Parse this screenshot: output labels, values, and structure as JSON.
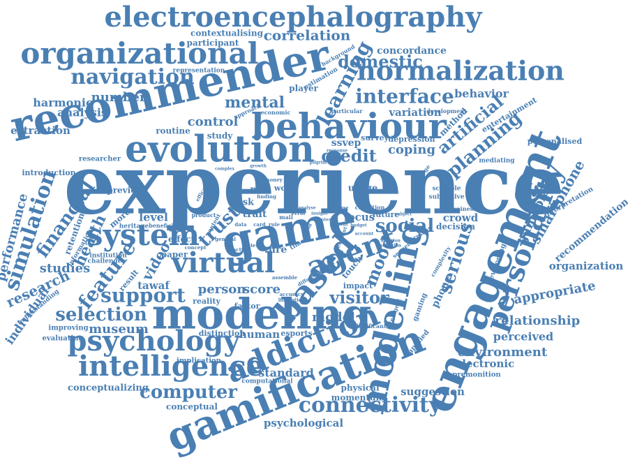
{
  "cloud": {
    "color": "#4a7fb3",
    "background": "#ffffff",
    "words": [
      {
        "text": "experience",
        "size": 5,
        "rot": 0
      },
      {
        "text": "recommender",
        "size": 4,
        "rot": -13
      },
      {
        "text": "electroencephalography",
        "size": 3,
        "rot": 0
      },
      {
        "text": "engagement",
        "size": 4,
        "rot": -68
      },
      {
        "text": "gamification",
        "size": 4,
        "rot": -22
      },
      {
        "text": "behaviour",
        "size": 4,
        "rot": 0
      },
      {
        "text": "evolution",
        "size": 4,
        "rot": 0
      },
      {
        "text": "game",
        "size": 4,
        "rot": -11
      },
      {
        "text": "modeling",
        "size": 4,
        "rot": 0
      },
      {
        "text": "organizational",
        "size": 3,
        "rot": 0
      },
      {
        "text": "normalization",
        "size": 3,
        "rot": 0
      },
      {
        "text": "modelling",
        "size": 3,
        "rot": -78
      },
      {
        "text": "addiction",
        "size": 3,
        "rot": -22
      },
      {
        "text": "psychology",
        "size": 3,
        "rot": 0
      },
      {
        "text": "intelligence",
        "size": 3,
        "rot": 0
      },
      {
        "text": "personality",
        "size": 3,
        "rot": -70
      },
      {
        "text": "agent",
        "size": 3,
        "rot": -20
      },
      {
        "text": "virtual",
        "size": 3,
        "rot": 0
      },
      {
        "text": "based",
        "size": 3,
        "rot": -50
      },
      {
        "text": "system",
        "size": 3,
        "rot": 0
      },
      {
        "text": "connectivity",
        "size": 2,
        "rot": 0
      },
      {
        "text": "navigation",
        "size": 2,
        "rot": 0
      },
      {
        "text": "interface",
        "size": 2,
        "rot": 0
      },
      {
        "text": "learning",
        "size": 2,
        "rot": -62
      },
      {
        "text": "domestic",
        "size": 2,
        "rot": 0
      },
      {
        "text": "social",
        "size": 2,
        "rot": 0
      },
      {
        "text": "support",
        "size": 2,
        "rot": 0
      },
      {
        "text": "feature",
        "size": 2,
        "rot": -52
      },
      {
        "text": "selection",
        "size": 2,
        "rot": 0
      },
      {
        "text": "computer",
        "size": 2,
        "rot": 0
      },
      {
        "text": "simulation",
        "size": 2,
        "rot": -72
      },
      {
        "text": "financial",
        "size": 2,
        "rot": -55
      },
      {
        "text": "planning",
        "size": 2,
        "rot": -40
      },
      {
        "text": "artificial",
        "size": 2,
        "rot": -40
      },
      {
        "text": "serious",
        "size": 2,
        "rot": -72
      },
      {
        "text": "mental",
        "size": 2,
        "rot": 0
      },
      {
        "text": "credit",
        "size": 2,
        "rot": 0
      },
      {
        "text": "trust",
        "size": 2,
        "rot": -45
      },
      {
        "text": "mood",
        "size": 2,
        "rot": -68
      },
      {
        "text": "visitor",
        "size": 2,
        "rot": 0
      },
      {
        "text": "correlation",
        "size": 1,
        "rot": 0
      },
      {
        "text": "control",
        "size": 1,
        "rot": 0
      },
      {
        "text": "coping",
        "size": 1,
        "rot": 0
      },
      {
        "text": "number",
        "size": 1,
        "rot": 0
      },
      {
        "text": "analysis",
        "size": 1,
        "rot": 0
      },
      {
        "text": "harmonic",
        "size": 1,
        "rot": 0
      },
      {
        "text": "extraction",
        "size": 1,
        "rot": 0
      },
      {
        "text": "behavior",
        "size": 1,
        "rot": 0
      },
      {
        "text": "variation",
        "size": 1,
        "rot": 0
      },
      {
        "text": "ssvep",
        "size": 1,
        "rot": 0
      },
      {
        "text": "gameplay",
        "size": 1,
        "rot": -65
      },
      {
        "text": "smartphone",
        "size": 1,
        "rot": -60
      },
      {
        "text": "health",
        "size": 1,
        "rot": -65
      },
      {
        "text": "research",
        "size": 1,
        "rot": -25
      },
      {
        "text": "studies",
        "size": 1,
        "rot": 0
      },
      {
        "text": "video",
        "size": 1,
        "rot": -60
      },
      {
        "text": "person",
        "size": 1,
        "rot": 0
      },
      {
        "text": "score",
        "size": 1,
        "rot": 0
      },
      {
        "text": "model",
        "size": 1,
        "rot": 0
      },
      {
        "text": "museum",
        "size": 1,
        "rot": 0
      },
      {
        "text": "human",
        "size": 1,
        "rot": 0
      },
      {
        "text": "standard",
        "size": 1,
        "rot": 0
      },
      {
        "text": "suggestion",
        "size": 1,
        "rot": 0
      },
      {
        "text": "environment",
        "size": 1,
        "rot": 0
      },
      {
        "text": "relationship",
        "size": 1,
        "rot": 0
      },
      {
        "text": "appropriate",
        "size": 1,
        "rot": -10
      },
      {
        "text": "perceived",
        "size": 1,
        "rot": 0
      },
      {
        "text": "psychological",
        "size": 1,
        "rot": 0
      },
      {
        "text": "conceptualizing",
        "size": 1,
        "rot": 0
      },
      {
        "text": "crowd",
        "size": 1,
        "rot": 0
      },
      {
        "text": "locus",
        "size": 1,
        "rot": 0
      },
      {
        "text": "level",
        "size": 1,
        "rot": 0
      },
      {
        "text": "performance",
        "size": 1,
        "rot": -75
      },
      {
        "text": "tawaf",
        "size": 1,
        "rot": 0
      },
      {
        "text": "phone",
        "size": 1,
        "rot": -65
      },
      {
        "text": "electronic",
        "size": 1,
        "rot": 0
      },
      {
        "text": "organization",
        "size": 1,
        "rot": 0
      },
      {
        "text": "recommendation",
        "size": 1,
        "rot": -40
      },
      {
        "text": "individual",
        "size": 1,
        "rot": -55
      },
      {
        "text": "concordance",
        "size": 0,
        "rot": 0
      },
      {
        "text": "contextualising",
        "size": 0,
        "rot": 0
      },
      {
        "text": "participant",
        "size": 0,
        "rot": 0
      },
      {
        "text": "player",
        "size": 0,
        "rot": 0
      },
      {
        "text": "routine",
        "size": 0,
        "rot": 0
      },
      {
        "text": "study",
        "size": 0,
        "rot": 0
      },
      {
        "text": "method",
        "size": 0,
        "rot": -45
      },
      {
        "text": "entertainment",
        "size": 0,
        "rot": -30
      },
      {
        "text": "personalised",
        "size": 0,
        "rot": 0
      },
      {
        "text": "depression",
        "size": 0,
        "rot": 0
      },
      {
        "text": "survey",
        "size": 0,
        "rot": 0
      },
      {
        "text": "introduction",
        "size": 0,
        "rot": 0
      },
      {
        "text": "researcher",
        "size": 0,
        "rot": 0
      },
      {
        "text": "previous",
        "size": 0,
        "rot": 0
      },
      {
        "text": "brain",
        "size": 0,
        "rot": -80
      },
      {
        "text": "more",
        "size": 0,
        "rot": -40
      },
      {
        "text": "retention",
        "size": 0,
        "rot": -70
      },
      {
        "text": "effect",
        "size": 0,
        "rot": 0
      },
      {
        "text": "paper",
        "size": 0,
        "rot": 0
      },
      {
        "text": "result",
        "size": 0,
        "rot": -50
      },
      {
        "text": "reality",
        "size": 0,
        "rot": 0
      },
      {
        "text": "factor",
        "size": 0,
        "rot": 0
      },
      {
        "text": "risk",
        "size": 0,
        "rot": 0
      },
      {
        "text": "trait",
        "size": 0,
        "rot": 0
      },
      {
        "text": "mcf",
        "size": 0,
        "rot": 0
      },
      {
        "text": "work",
        "size": 0,
        "rot": 0
      },
      {
        "text": "usage",
        "size": 0,
        "rot": 0
      },
      {
        "text": "fire",
        "size": 0,
        "rot": 0
      },
      {
        "text": "robot",
        "size": 0,
        "rot": -40
      },
      {
        "text": "touch",
        "size": 0,
        "rot": -50
      },
      {
        "text": "impact",
        "size": 0,
        "rot": 0
      },
      {
        "text": "future",
        "size": 0,
        "rot": 0
      },
      {
        "text": "decision",
        "size": 0,
        "rot": 0
      },
      {
        "text": "scalable",
        "size": 0,
        "rot": 0
      },
      {
        "text": "subjective",
        "size": 0,
        "rot": 0
      },
      {
        "text": "mediating",
        "size": 0,
        "rot": 0
      },
      {
        "text": "developing",
        "size": 0,
        "rot": -70
      },
      {
        "text": "interpretation",
        "size": 0,
        "rot": -30
      },
      {
        "text": "gaming",
        "size": 0,
        "rot": -70
      },
      {
        "text": "applied",
        "size": 0,
        "rot": -50
      },
      {
        "text": "esports",
        "size": 0,
        "rot": 0
      },
      {
        "text": "distinction",
        "size": 0,
        "rot": 0
      },
      {
        "text": "implication",
        "size": 0,
        "rot": 0
      },
      {
        "text": "improving",
        "size": 0,
        "rot": 0
      },
      {
        "text": "evaluating",
        "size": 0,
        "rot": 0
      },
      {
        "text": "understanding",
        "size": 0,
        "rot": -40
      },
      {
        "text": "computational",
        "size": 0,
        "rot": 0
      },
      {
        "text": "physical",
        "size": 0,
        "rot": 0
      },
      {
        "text": "momentum",
        "size": 0,
        "rot": 0
      },
      {
        "text": "premonition",
        "size": 0,
        "rot": 0
      },
      {
        "text": "significant",
        "size": 0,
        "rot": 0
      },
      {
        "text": "conceptual",
        "size": 0,
        "rot": 0
      },
      {
        "text": "beneficial",
        "size": 0,
        "rot": 0
      },
      {
        "text": "heritage",
        "size": 0,
        "rot": 0
      },
      {
        "text": "institution",
        "size": 0,
        "rot": 0
      },
      {
        "text": "challenge",
        "size": 0,
        "rot": 0
      },
      {
        "text": "information",
        "size": 0,
        "rot": -60
      },
      {
        "text": "estimation",
        "size": 0,
        "rot": -30
      },
      {
        "text": "background",
        "size": 0,
        "rot": -30
      },
      {
        "text": "representation",
        "size": 0,
        "rot": 0
      },
      {
        "text": "approach",
        "size": 0,
        "rot": -25
      },
      {
        "text": "economic",
        "size": 0,
        "rot": 0
      },
      {
        "text": "particular",
        "size": 0,
        "rot": 0
      },
      {
        "text": "development",
        "size": 0,
        "rot": 0
      },
      {
        "text": "change",
        "size": 0,
        "rot": -50
      },
      {
        "text": "happiness",
        "size": 0,
        "rot": 0
      },
      {
        "text": "condition",
        "size": 0,
        "rot": 0
      },
      {
        "text": "accuracy",
        "size": 0,
        "rot": 0
      },
      {
        "text": "limitation",
        "size": 0,
        "rot": 0
      },
      {
        "text": "intelligent",
        "size": 0,
        "rot": -70
      },
      {
        "text": "complexity",
        "size": 0,
        "rot": -60
      },
      {
        "text": "present",
        "size": 0,
        "rot": -30
      },
      {
        "text": "sequence",
        "size": 0,
        "rot": -40
      },
      {
        "text": "assemble",
        "size": 0,
        "rot": 0
      },
      {
        "text": "different",
        "size": 0,
        "rot": -30
      },
      {
        "text": "element",
        "size": 0,
        "rot": -70
      },
      {
        "text": "money",
        "size": 0,
        "rot": 0
      },
      {
        "text": "finding",
        "size": 0,
        "rot": 0
      },
      {
        "text": "product",
        "size": 0,
        "rot": 0
      },
      {
        "text": "content",
        "size": 0,
        "rot": -60
      },
      {
        "text": "efficacy",
        "size": 0,
        "rot": -60
      },
      {
        "text": "concept",
        "size": 0,
        "rot": 0
      },
      {
        "text": "general",
        "size": 0,
        "rot": 0
      },
      {
        "text": "action",
        "size": 0,
        "rot": 0
      },
      {
        "text": "society",
        "size": 0,
        "rot": 0
      },
      {
        "text": "data",
        "size": 0,
        "rot": 0
      },
      {
        "text": "card",
        "size": 0,
        "rot": 0
      },
      {
        "text": "mail",
        "size": 0,
        "rot": 0
      },
      {
        "text": "error",
        "size": 0,
        "rot": 0
      },
      {
        "text": "rule",
        "size": 0,
        "rot": 0
      },
      {
        "text": "time",
        "size": 0,
        "rot": -30
      },
      {
        "text": "pilgrim",
        "size": 0,
        "rot": 0
      },
      {
        "text": "growth",
        "size": 0,
        "rot": 0
      },
      {
        "text": "complex",
        "size": 0,
        "rot": 0
      },
      {
        "text": "response",
        "size": 0,
        "rot": 0
      },
      {
        "text": "addition",
        "size": 0,
        "rot": 0
      },
      {
        "text": "selection",
        "size": 0,
        "rot": 0
      },
      {
        "text": "analyse",
        "size": 0,
        "rot": 0
      },
      {
        "text": "account",
        "size": 0,
        "rot": 0
      },
      {
        "text": "subject",
        "size": 0,
        "rot": 0
      },
      {
        "text": "world",
        "size": 0,
        "rot": -60
      },
      {
        "text": "recent",
        "size": 0,
        "rot": 0
      },
      {
        "text": "budget",
        "size": 0,
        "rot": 0
      },
      {
        "text": "insight",
        "size": 0,
        "rot": 0
      },
      {
        "text": "context",
        "size": 0,
        "rot": 0
      },
      {
        "text": "course",
        "size": 0,
        "rot": 0
      }
    ]
  }
}
